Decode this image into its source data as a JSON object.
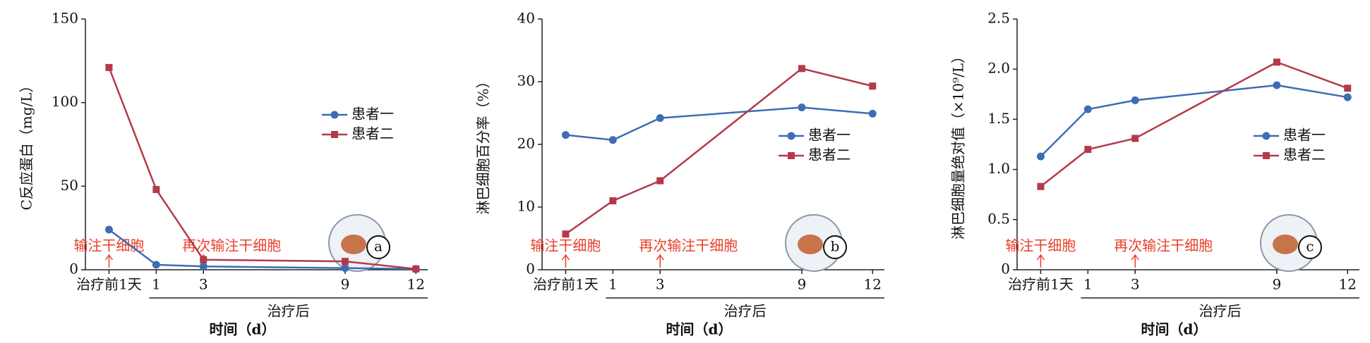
{
  "chart_data": [
    {
      "type": "line",
      "ylabel": "C反应蛋白（mg/L）",
      "xlabel": "时间（d）",
      "x_group_label": "治疗后",
      "panel_label": "a",
      "x": [
        -1,
        1,
        3,
        9,
        12
      ],
      "xlim": [
        -2,
        12.5
      ],
      "xticks": [
        {
          "value": -1,
          "label": "治疗前1天"
        },
        1,
        3,
        9,
        12
      ],
      "ylim": [
        0,
        150
      ],
      "yticks": [
        0,
        50,
        100,
        150
      ],
      "legend": "right",
      "annotations": [
        {
          "text": "输注干细胞",
          "x": -1
        },
        {
          "text": "再次输注干细胞",
          "x": 3
        }
      ],
      "series": [
        {
          "name": "患者一",
          "color": "#3d6db5",
          "marker": "circle",
          "values": [
            24,
            3,
            2,
            1,
            0.5
          ]
        },
        {
          "name": "患者二",
          "color": "#b33a4a",
          "marker": "square",
          "values": [
            121,
            48,
            6,
            5,
            0.5
          ]
        }
      ]
    },
    {
      "type": "line",
      "ylabel": "淋巴细胞百分率（%）",
      "xlabel": "时间（d）",
      "x_group_label": "治疗后",
      "panel_label": "b",
      "x": [
        -1,
        1,
        3,
        9,
        12
      ],
      "xlim": [
        -2,
        12.5
      ],
      "xticks": [
        {
          "value": -1,
          "label": "治疗前1天"
        },
        1,
        3,
        9,
        12
      ],
      "ylim": [
        0,
        40
      ],
      "yticks": [
        0,
        10,
        20,
        30,
        40
      ],
      "legend": "right",
      "annotations": [
        {
          "text": "输注干细胞",
          "x": -1
        },
        {
          "text": "再次输注干细胞",
          "x": 3
        }
      ],
      "series": [
        {
          "name": "患者一",
          "color": "#3d6db5",
          "marker": "circle",
          "values": [
            21.5,
            20.7,
            24.2,
            25.9,
            24.9
          ]
        },
        {
          "name": "患者二",
          "color": "#b33a4a",
          "marker": "square",
          "values": [
            5.7,
            11,
            14.2,
            32.1,
            29.3
          ]
        }
      ]
    },
    {
      "type": "line",
      "ylabel": "淋巴细胞量绝对值（×10⁹/L）",
      "xlabel": "时间（d）",
      "x_group_label": "治疗后",
      "panel_label": "c",
      "x": [
        -1,
        1,
        3,
        9,
        12
      ],
      "xlim": [
        -2,
        12.5
      ],
      "xticks": [
        {
          "value": -1,
          "label": "治疗前1天"
        },
        1,
        3,
        9,
        12
      ],
      "ylim": [
        0,
        2.5
      ],
      "yticks": [
        0,
        0.5,
        {
          "value": 1,
          "label": "1.0"
        },
        1.5,
        {
          "value": 2,
          "label": "2.0"
        },
        2.5
      ],
      "legend": "right",
      "annotations": [
        {
          "text": "输注干细胞",
          "x": -1
        },
        {
          "text": "再次输注干细胞",
          "x": 3
        }
      ],
      "series": [
        {
          "name": "患者一",
          "color": "#3d6db5",
          "marker": "circle",
          "values": [
            1.13,
            1.6,
            1.69,
            1.84,
            1.72
          ]
        },
        {
          "name": "患者二",
          "color": "#b33a4a",
          "marker": "square",
          "values": [
            0.83,
            1.2,
            1.31,
            2.07,
            1.81
          ]
        }
      ]
    }
  ]
}
